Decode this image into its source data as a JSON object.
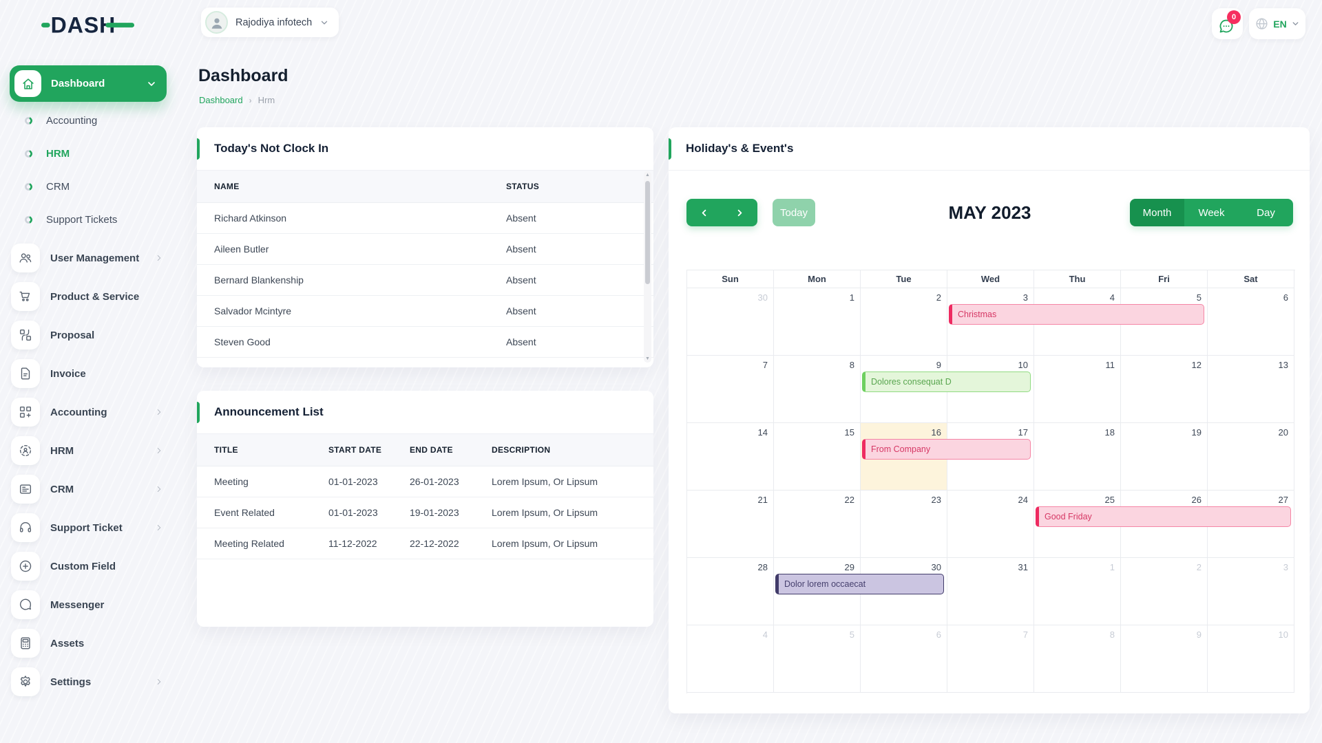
{
  "colors": {
    "primary_green": "#21A55D",
    "primary_dark_green": "#17914E",
    "primary_light_green": "#8FD2AB",
    "logo_navy": "#16253F",
    "badge_pink": "#F62E5F",
    "today_bg": "#FDF4DC"
  },
  "brand": {
    "logo_text": "DASH"
  },
  "topbar": {
    "company_name": "Rajodiya infotech",
    "notification_badge": "0",
    "language": "EN",
    "icons": [
      "user-avatar",
      "chat-bubble-icon",
      "globe-icon",
      "chevron-down-icon"
    ]
  },
  "page": {
    "title": "Dashboard",
    "breadcrumb_home": "Dashboard",
    "breadcrumb_current": "Hrm"
  },
  "sidebar": {
    "dashboard_label": "Dashboard",
    "dashboard_icon": "home-icon",
    "dashboard_children": [
      {
        "label": "Accounting",
        "active": false
      },
      {
        "label": "HRM",
        "active": true
      },
      {
        "label": "CRM",
        "active": false
      },
      {
        "label": "Support Tickets",
        "active": false
      }
    ],
    "items": [
      {
        "label": "User Management",
        "icon": "users-icon",
        "chevron": true
      },
      {
        "label": "Product & Service",
        "icon": "cart-icon",
        "chevron": false
      },
      {
        "label": "Proposal",
        "icon": "proposal-icon",
        "chevron": false
      },
      {
        "label": "Invoice",
        "icon": "invoice-icon",
        "chevron": false
      },
      {
        "label": "Accounting",
        "icon": "grid-plus-icon",
        "chevron": true
      },
      {
        "label": "HRM",
        "icon": "target-user-icon",
        "chevron": true
      },
      {
        "label": "CRM",
        "icon": "card-icon",
        "chevron": true
      },
      {
        "label": "Support Ticket",
        "icon": "headset-icon",
        "chevron": true
      },
      {
        "label": "Custom Field",
        "icon": "plus-circle-icon",
        "chevron": false
      },
      {
        "label": "Messenger",
        "icon": "chat-icon",
        "chevron": false
      },
      {
        "label": "Assets",
        "icon": "calculator-icon",
        "chevron": false
      },
      {
        "label": "Settings",
        "icon": "gear-icon",
        "chevron": true
      }
    ]
  },
  "not_clock_in": {
    "title": "Today's Not Clock In",
    "columns": [
      "NAME",
      "STATUS"
    ],
    "rows": [
      [
        "Richard Atkinson",
        "Absent"
      ],
      [
        "Aileen Butler",
        "Absent"
      ],
      [
        "Bernard Blankenship",
        "Absent"
      ],
      [
        "Salvador Mcintyre",
        "Absent"
      ],
      [
        "Steven Good",
        "Absent"
      ]
    ]
  },
  "announcements": {
    "title": "Announcement List",
    "columns": [
      "TITLE",
      "START DATE",
      "END DATE",
      "DESCRIPTION"
    ],
    "rows": [
      [
        "Meeting",
        "01-01-2023",
        "26-01-2023",
        "Lorem Ipsum, Or Lipsum"
      ],
      [
        "Event Related",
        "01-01-2023",
        "19-01-2023",
        "Lorem Ipsum, Or Lipsum"
      ],
      [
        "Meeting Related",
        "11-12-2022",
        "22-12-2022",
        "Lorem Ipsum, Or Lipsum"
      ]
    ]
  },
  "calendar": {
    "title": "Holiday's & Event's",
    "toolbar": {
      "prev_icon": "chevron-left-icon",
      "next_icon": "chevron-right-icon",
      "today_label": "Today",
      "month_title": "MAY 2023",
      "views": [
        "Month",
        "Week",
        "Day"
      ],
      "active_view": "Month"
    },
    "day_headers": [
      "Sun",
      "Mon",
      "Tue",
      "Wed",
      "Thu",
      "Fri",
      "Sat"
    ],
    "weeks": [
      [
        {
          "d": 30,
          "out": true
        },
        {
          "d": 1
        },
        {
          "d": 2
        },
        {
          "d": 3
        },
        {
          "d": 4
        },
        {
          "d": 5
        },
        {
          "d": 6
        }
      ],
      [
        {
          "d": 7
        },
        {
          "d": 8
        },
        {
          "d": 9
        },
        {
          "d": 10
        },
        {
          "d": 11
        },
        {
          "d": 12
        },
        {
          "d": 13
        }
      ],
      [
        {
          "d": 14
        },
        {
          "d": 15
        },
        {
          "d": 16,
          "today": true
        },
        {
          "d": 17
        },
        {
          "d": 18
        },
        {
          "d": 19
        },
        {
          "d": 20
        }
      ],
      [
        {
          "d": 21
        },
        {
          "d": 22
        },
        {
          "d": 23
        },
        {
          "d": 24
        },
        {
          "d": 25
        },
        {
          "d": 26
        },
        {
          "d": 27
        }
      ],
      [
        {
          "d": 28
        },
        {
          "d": 29
        },
        {
          "d": 30
        },
        {
          "d": 31
        },
        {
          "d": 1,
          "out": true
        },
        {
          "d": 2,
          "out": true
        },
        {
          "d": 3,
          "out": true
        }
      ],
      [
        {
          "d": 4,
          "out": true
        },
        {
          "d": 5,
          "out": true
        },
        {
          "d": 6,
          "out": true
        },
        {
          "d": 7,
          "out": true
        },
        {
          "d": 8,
          "out": true
        },
        {
          "d": 9,
          "out": true
        },
        {
          "d": 10,
          "out": true
        }
      ]
    ],
    "events": [
      {
        "label": "Christmas",
        "week": 0,
        "col": 3,
        "span": 3,
        "color": "pink"
      },
      {
        "label": "Dolores consequat D",
        "week": 1,
        "col": 2,
        "span": 2,
        "color": "green"
      },
      {
        "label": "From Company",
        "week": 2,
        "col": 2,
        "span": 2,
        "color": "pink"
      },
      {
        "label": "Good Friday",
        "week": 3,
        "col": 4,
        "span": 3,
        "color": "pink"
      },
      {
        "label": "Dolor lorem occaecat",
        "week": 4,
        "col": 1,
        "span": 2,
        "color": "purple"
      }
    ],
    "event_colors": {
      "pink": {
        "bg": "#FBD5E0",
        "border": "#F585A5",
        "accent": "#EE2B61",
        "text": "#D63865"
      },
      "green": {
        "bg": "#E4F6DA",
        "border": "#90DB81",
        "accent": "#6ED060",
        "text": "#59A64F"
      },
      "purple": {
        "bg": "#CBC5E1",
        "border": "#413B69",
        "accent": "#413B69",
        "text": "#453F6D"
      }
    }
  }
}
